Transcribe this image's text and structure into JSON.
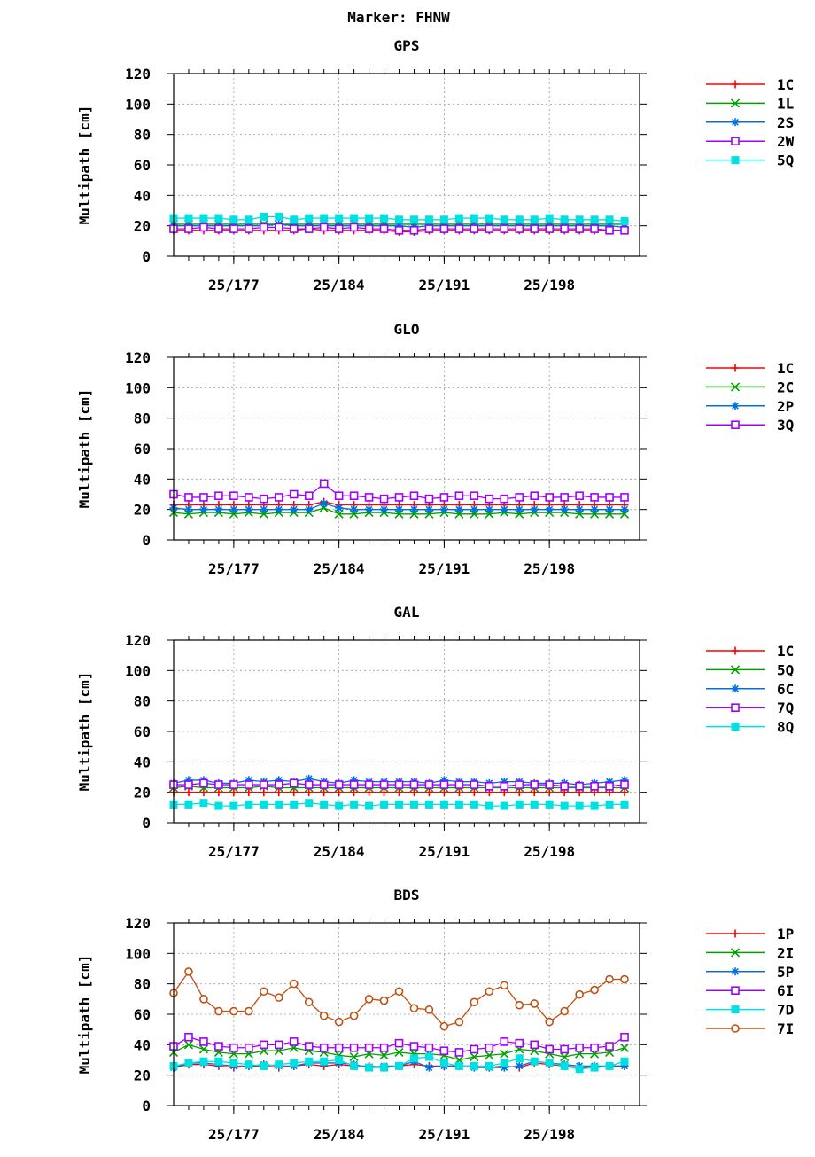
{
  "title": "Marker: FHNW",
  "chart_data": [
    {
      "type": "line",
      "title": "GPS",
      "ylabel": "Multipath [cm]",
      "xlabel": "",
      "ylim": [
        0,
        120
      ],
      "yticks": [
        0,
        20,
        40,
        60,
        80,
        100,
        120
      ],
      "xlim": [
        173,
        204
      ],
      "xticks": [
        {
          "value": 177,
          "label": "25/177"
        },
        {
          "value": 184,
          "label": "25/184"
        },
        {
          "value": 191,
          "label": "25/191"
        },
        {
          "value": 198,
          "label": "25/198"
        }
      ],
      "grid": true,
      "legend_position": "right",
      "x": [
        173,
        174,
        175,
        176,
        177,
        178,
        179,
        180,
        181,
        182,
        183,
        184,
        185,
        186,
        187,
        188,
        189,
        190,
        191,
        192,
        193,
        194,
        195,
        196,
        197,
        198,
        199,
        200,
        201,
        202,
        203
      ],
      "series": [
        {
          "name": "1C",
          "color": "#ff0000",
          "marker": "plus",
          "values": [
            17,
            17,
            17,
            17,
            17,
            17,
            17,
            17,
            17,
            18,
            17,
            17,
            17,
            17,
            17,
            16,
            16,
            17,
            17,
            17,
            17,
            17,
            17,
            17,
            17,
            17,
            17,
            17,
            17,
            17,
            17
          ]
        },
        {
          "name": "1L",
          "color": "#00a000",
          "marker": "x",
          "values": [
            21,
            21,
            21,
            21,
            21,
            21,
            21,
            21,
            21,
            21,
            21,
            21,
            21,
            21,
            21,
            21,
            21,
            21,
            21,
            21,
            21,
            21,
            21,
            21,
            21,
            21,
            21,
            21,
            21,
            21,
            21
          ]
        },
        {
          "name": "2S",
          "color": "#0070e0",
          "marker": "star",
          "values": [
            20,
            20,
            20,
            20,
            20,
            20,
            20,
            21,
            20,
            20,
            20,
            20,
            20,
            20,
            20,
            20,
            19,
            20,
            20,
            20,
            20,
            20,
            20,
            20,
            20,
            20,
            20,
            20,
            20,
            20,
            19
          ]
        },
        {
          "name": "2W",
          "color": "#a000ff",
          "marker": "square",
          "values": [
            18,
            18,
            19,
            18,
            18,
            18,
            19,
            19,
            18,
            18,
            19,
            18,
            19,
            18,
            18,
            17,
            17,
            18,
            18,
            18,
            18,
            18,
            18,
            18,
            18,
            18,
            18,
            18,
            18,
            17,
            17
          ]
        },
        {
          "name": "5Q",
          "color": "#00e0e0",
          "marker": "filled-square",
          "values": [
            25,
            25,
            25,
            25,
            24,
            24,
            26,
            26,
            24,
            25,
            25,
            25,
            25,
            25,
            25,
            24,
            24,
            24,
            24,
            25,
            25,
            25,
            24,
            24,
            24,
            25,
            24,
            24,
            24,
            24,
            23
          ]
        }
      ]
    },
    {
      "type": "line",
      "title": "GLO",
      "ylabel": "Multipath [cm]",
      "xlabel": "",
      "ylim": [
        0,
        120
      ],
      "yticks": [
        0,
        20,
        40,
        60,
        80,
        100,
        120
      ],
      "xlim": [
        173,
        204
      ],
      "xticks": [
        {
          "value": 177,
          "label": "25/177"
        },
        {
          "value": 184,
          "label": "25/184"
        },
        {
          "value": 191,
          "label": "25/191"
        },
        {
          "value": 198,
          "label": "25/198"
        }
      ],
      "grid": true,
      "legend_position": "right",
      "x": [
        173,
        174,
        175,
        176,
        177,
        178,
        179,
        180,
        181,
        182,
        183,
        184,
        185,
        186,
        187,
        188,
        189,
        190,
        191,
        192,
        193,
        194,
        195,
        196,
        197,
        198,
        199,
        200,
        201,
        202,
        203
      ],
      "series": [
        {
          "name": "1C",
          "color": "#ff0000",
          "marker": "plus",
          "values": [
            23,
            23,
            23,
            23,
            23,
            23,
            23,
            23,
            23,
            23,
            25,
            23,
            23,
            23,
            23,
            23,
            23,
            23,
            23,
            23,
            23,
            23,
            23,
            23,
            23,
            23,
            23,
            23,
            23,
            23,
            23
          ]
        },
        {
          "name": "2C",
          "color": "#00a000",
          "marker": "x",
          "values": [
            18,
            17,
            18,
            18,
            17,
            18,
            17,
            18,
            18,
            18,
            21,
            17,
            17,
            18,
            18,
            17,
            17,
            17,
            18,
            17,
            17,
            17,
            18,
            17,
            18,
            18,
            18,
            17,
            17,
            17,
            17
          ]
        },
        {
          "name": "2P",
          "color": "#0070e0",
          "marker": "star",
          "values": [
            21,
            20,
            20,
            20,
            20,
            20,
            20,
            20,
            20,
            20,
            24,
            21,
            20,
            20,
            20,
            20,
            20,
            20,
            20,
            20,
            20,
            20,
            20,
            20,
            20,
            20,
            20,
            20,
            20,
            20,
            20
          ]
        },
        {
          "name": "3Q",
          "color": "#a000ff",
          "marker": "square",
          "values": [
            30,
            28,
            28,
            29,
            29,
            28,
            27,
            28,
            30,
            29,
            37,
            29,
            29,
            28,
            27,
            28,
            29,
            27,
            28,
            29,
            29,
            27,
            27,
            28,
            29,
            28,
            28,
            29,
            28,
            28,
            28
          ]
        }
      ]
    },
    {
      "type": "line",
      "title": "GAL",
      "ylabel": "Multipath [cm]",
      "xlabel": "",
      "ylim": [
        0,
        120
      ],
      "yticks": [
        0,
        20,
        40,
        60,
        80,
        100,
        120
      ],
      "xlim": [
        173,
        204
      ],
      "xticks": [
        {
          "value": 177,
          "label": "25/177"
        },
        {
          "value": 184,
          "label": "25/184"
        },
        {
          "value": 191,
          "label": "25/191"
        },
        {
          "value": 198,
          "label": "25/198"
        }
      ],
      "grid": true,
      "legend_position": "right",
      "x": [
        173,
        174,
        175,
        176,
        177,
        178,
        179,
        180,
        181,
        182,
        183,
        184,
        185,
        186,
        187,
        188,
        189,
        190,
        191,
        192,
        193,
        194,
        195,
        196,
        197,
        198,
        199,
        200,
        201,
        202,
        203
      ],
      "series": [
        {
          "name": "1C",
          "color": "#ff0000",
          "marker": "plus",
          "values": [
            20,
            20,
            20,
            20,
            20,
            20,
            20,
            20,
            20,
            20,
            20,
            20,
            20,
            20,
            20,
            20,
            20,
            20,
            20,
            20,
            20,
            20,
            20,
            20,
            20,
            20,
            20,
            20,
            20,
            20,
            20
          ]
        },
        {
          "name": "5Q",
          "color": "#00a000",
          "marker": "x",
          "values": [
            23,
            24,
            23,
            23,
            23,
            23,
            24,
            23,
            23,
            23,
            23,
            23,
            23,
            23,
            23,
            23,
            23,
            23,
            23,
            23,
            23,
            23,
            23,
            23,
            23,
            23,
            23,
            23,
            23,
            23,
            23
          ]
        },
        {
          "name": "6C",
          "color": "#0070e0",
          "marker": "star",
          "values": [
            26,
            28,
            28,
            26,
            26,
            28,
            27,
            28,
            27,
            29,
            27,
            26,
            28,
            27,
            27,
            27,
            27,
            26,
            28,
            27,
            27,
            26,
            27,
            27,
            26,
            26,
            26,
            25,
            26,
            27,
            28
          ]
        },
        {
          "name": "7Q",
          "color": "#a000ff",
          "marker": "square",
          "values": [
            25,
            25,
            26,
            25,
            25,
            25,
            25,
            25,
            26,
            25,
            25,
            25,
            25,
            25,
            25,
            25,
            25,
            25,
            25,
            25,
            25,
            24,
            24,
            25,
            25,
            25,
            24,
            24,
            24,
            24,
            25
          ]
        },
        {
          "name": "8Q",
          "color": "#00e0e0",
          "marker": "filled-square",
          "values": [
            12,
            12,
            13,
            11,
            11,
            12,
            12,
            12,
            12,
            13,
            12,
            11,
            12,
            11,
            12,
            12,
            12,
            12,
            12,
            12,
            12,
            11,
            11,
            12,
            12,
            12,
            11,
            11,
            11,
            12,
            12
          ]
        }
      ]
    },
    {
      "type": "line",
      "title": "BDS",
      "ylabel": "Multipath [cm]",
      "xlabel": "",
      "ylim": [
        0,
        120
      ],
      "yticks": [
        0,
        20,
        40,
        60,
        80,
        100,
        120
      ],
      "xlim": [
        173,
        204
      ],
      "xticks": [
        {
          "value": 177,
          "label": "25/177"
        },
        {
          "value": 184,
          "label": "25/184"
        },
        {
          "value": 191,
          "label": "25/191"
        },
        {
          "value": 198,
          "label": "25/198"
        }
      ],
      "grid": true,
      "legend_position": "right",
      "x": [
        173,
        174,
        175,
        176,
        177,
        178,
        179,
        180,
        181,
        182,
        183,
        184,
        185,
        186,
        187,
        188,
        189,
        190,
        191,
        192,
        193,
        194,
        195,
        196,
        197,
        198,
        199,
        200,
        201,
        202,
        203
      ],
      "series": [
        {
          "name": "1P",
          "color": "#ff0000",
          "marker": "plus",
          "values": [
            25,
            27,
            27,
            26,
            25,
            26,
            26,
            25,
            26,
            27,
            26,
            27,
            26,
            26,
            25,
            26,
            27,
            26,
            26,
            26,
            26,
            25,
            26,
            25,
            28,
            27,
            26,
            25,
            25,
            26,
            26
          ]
        },
        {
          "name": "2I",
          "color": "#00a000",
          "marker": "x",
          "values": [
            35,
            40,
            37,
            35,
            34,
            34,
            36,
            36,
            38,
            36,
            35,
            33,
            32,
            34,
            33,
            35,
            34,
            34,
            33,
            30,
            32,
            33,
            34,
            37,
            36,
            34,
            32,
            34,
            34,
            35,
            38
          ]
        },
        {
          "name": "5P",
          "color": "#0070e0",
          "marker": "star",
          "values": [
            25,
            28,
            28,
            27,
            26,
            26,
            27,
            26,
            26,
            28,
            28,
            28,
            27,
            25,
            26,
            26,
            29,
            25,
            26,
            26,
            25,
            25,
            25,
            26,
            29,
            28,
            27,
            26,
            26,
            26,
            26
          ]
        },
        {
          "name": "6I",
          "color": "#a000ff",
          "marker": "square",
          "values": [
            39,
            45,
            42,
            39,
            38,
            38,
            40,
            40,
            42,
            39,
            38,
            38,
            38,
            38,
            38,
            41,
            39,
            38,
            36,
            35,
            37,
            38,
            42,
            41,
            40,
            37,
            37,
            38,
            38,
            39,
            45
          ]
        },
        {
          "name": "7D",
          "color": "#00e0e0",
          "marker": "filled-square",
          "values": [
            26,
            28,
            29,
            29,
            28,
            27,
            26,
            27,
            28,
            29,
            29,
            30,
            26,
            25,
            25,
            26,
            31,
            32,
            28,
            26,
            26,
            26,
            28,
            31,
            29,
            28,
            26,
            24,
            25,
            26,
            29
          ]
        },
        {
          "name": "7I",
          "color": "#c05010",
          "marker": "circle",
          "values": [
            74,
            88,
            70,
            62,
            62,
            62,
            75,
            71,
            80,
            68,
            59,
            55,
            59,
            70,
            69,
            75,
            64,
            63,
            52,
            55,
            68,
            75,
            79,
            66,
            67,
            55,
            62,
            73,
            76,
            83,
            83
          ]
        }
      ]
    }
  ]
}
